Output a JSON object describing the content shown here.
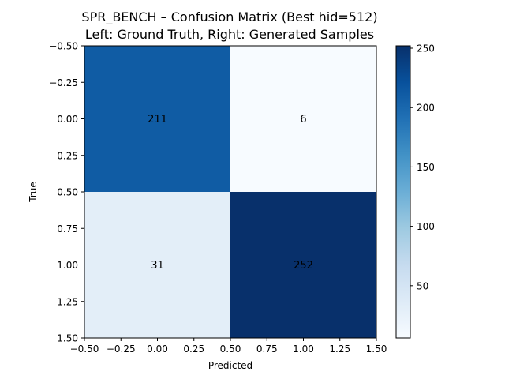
{
  "chart_data": {
    "type": "heatmap",
    "title": "SPR_BENCH – Confusion Matrix (Best hid=512)",
    "subtitle": "Left: Ground Truth, Right: Generated Samples",
    "xlabel": "Predicted",
    "ylabel": "True",
    "xlim": [
      -0.5,
      1.5
    ],
    "ylim": [
      1.5,
      -0.5
    ],
    "x_ticks": [
      "−0.50",
      "−0.25",
      "0.00",
      "0.25",
      "0.50",
      "0.75",
      "1.00",
      "1.25",
      "1.50"
    ],
    "y_ticks": [
      "−0.50",
      "−0.25",
      "0.00",
      "0.25",
      "0.50",
      "0.75",
      "1.00",
      "1.25",
      "1.50"
    ],
    "matrix": [
      [
        211,
        6
      ],
      [
        31,
        252
      ]
    ],
    "cell_labels": [
      [
        "211",
        "6"
      ],
      [
        "31",
        "252"
      ]
    ],
    "colormap": "Blues",
    "colorbar": {
      "range": [
        6,
        252
      ],
      "ticks": [
        "50",
        "100",
        "150",
        "200",
        "250"
      ],
      "tick_values": [
        50,
        100,
        150,
        200,
        250
      ]
    }
  }
}
